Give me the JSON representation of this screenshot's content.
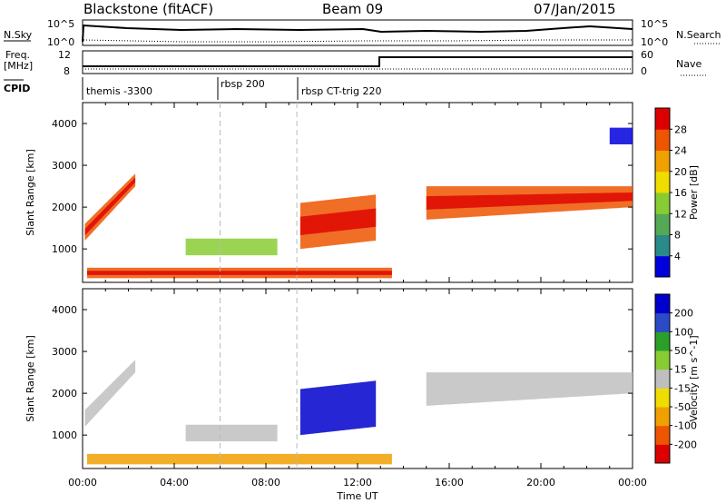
{
  "header": {
    "station": "Blackstone (fitACF)",
    "beam": "Beam 09",
    "date": "07/Jan/2015"
  },
  "top_panels": {
    "nsky_label": "N.Sky",
    "nsky_ticks": [
      "10^5",
      "10^0"
    ],
    "nsearch_label": "N.Search",
    "nsearch_ticks": [
      "10^5",
      "10^0"
    ],
    "freq_label_1": "Freq.",
    "freq_label_2": "[MHz]",
    "freq_ticks": [
      "12",
      "8"
    ],
    "nave_label": "Nave",
    "nave_ticks": [
      "60",
      "0"
    ],
    "cpid_label": "CPID",
    "cpid_segments": [
      {
        "label": "themis -3300",
        "start": "00:00"
      },
      {
        "label": "rbsp 200",
        "start": "06:00"
      },
      {
        "label": "rbsp CT-trig 220",
        "start": "09:20"
      }
    ]
  },
  "chart_data": [
    {
      "type": "heatmap",
      "panel": "power",
      "ylabel": "Slant Range [km]",
      "xlabel": "",
      "xlim": [
        0,
        24
      ],
      "ylim": [
        200,
        4500
      ],
      "y_ticks": [
        1000,
        2000,
        3000,
        4000
      ],
      "colorbar": {
        "label": "Power [dB]",
        "ticks": [
          4,
          8,
          12,
          16,
          20,
          24,
          28
        ]
      },
      "echo_regions": [
        {
          "t": [
            0.1,
            2.3
          ],
          "range_start": [
            1200,
            2500
          ],
          "range_end": [
            1600,
            2800
          ],
          "value": "high"
        },
        {
          "t": [
            0.2,
            13.5
          ],
          "range_start": [
            300,
            300
          ],
          "range_end": [
            550,
            550
          ],
          "value": "high"
        },
        {
          "t": [
            4.5,
            8.5
          ],
          "range_start": [
            850,
            850
          ],
          "range_end": [
            1250,
            1250
          ],
          "value": "medium"
        },
        {
          "t": [
            9.5,
            12.8
          ],
          "range_start": [
            1000,
            1200
          ],
          "range_end": [
            2100,
            2300
          ],
          "value": "high"
        },
        {
          "t": [
            15.0,
            24.0
          ],
          "range_start": [
            1700,
            2000
          ],
          "range_end": [
            2500,
            2500
          ],
          "value": "high"
        },
        {
          "t": [
            23.0,
            24.0
          ],
          "range_start": [
            3500,
            3500
          ],
          "range_end": [
            3900,
            3900
          ],
          "value": "low"
        }
      ]
    },
    {
      "type": "heatmap",
      "panel": "velocity",
      "ylabel": "Slant Range [km]",
      "xlabel": "Time UT",
      "xlim": [
        0,
        24
      ],
      "ylim": [
        200,
        4500
      ],
      "x_ticks": [
        "00:00",
        "04:00",
        "08:00",
        "12:00",
        "16:00",
        "20:00",
        "00:00"
      ],
      "y_ticks": [
        1000,
        2000,
        3000,
        4000
      ],
      "colorbar": {
        "label": "Velocity [m s^-1]",
        "ticks": [
          200,
          100,
          50,
          15,
          -15,
          -50,
          -100,
          -200
        ]
      },
      "echo_regions": [
        {
          "t": [
            0.1,
            2.3
          ],
          "value": "-15..15"
        },
        {
          "t": [
            0.2,
            13.5
          ],
          "value": "-100..-15"
        },
        {
          "t": [
            4.5,
            8.5
          ],
          "value": "-15..15"
        },
        {
          "t": [
            9.5,
            12.8
          ],
          "value": "100..200"
        },
        {
          "t": [
            15.0,
            24.0
          ],
          "value": "-15..15"
        }
      ]
    }
  ],
  "colors": {
    "power_scale": [
      "#0000dd",
      "#2a8a8a",
      "#55a855",
      "#88cc33",
      "#f0dd00",
      "#f0a000",
      "#ee5500",
      "#dd0000"
    ],
    "velocity_scale": [
      "#dd0000",
      "#ee5500",
      "#f0a000",
      "#f0dd00",
      "#bfbfbf",
      "#88cc33",
      "#2aa02a",
      "#2a4ac8",
      "#0000cc"
    ]
  }
}
